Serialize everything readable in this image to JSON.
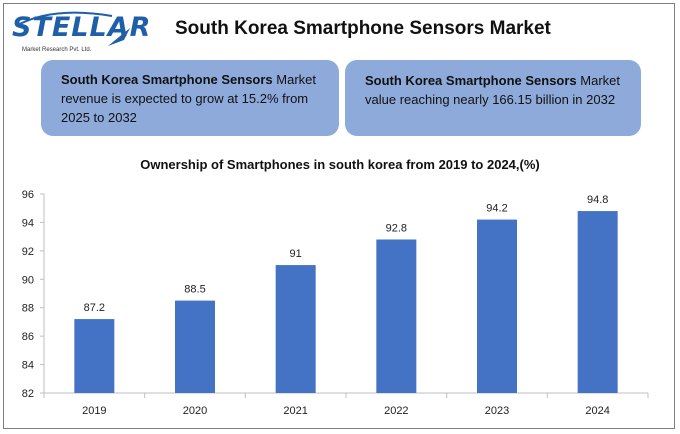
{
  "logo": {
    "brand": "STELLAR",
    "tagline": "Market Research Pvt. Ltd."
  },
  "header": {
    "title": "South Korea Smartphone Sensors Market"
  },
  "info_boxes": [
    {
      "bold": "South Korea Smartphone Sensors",
      "text": " Market revenue is expected to grow at 15.2% from 2025 to 2032"
    },
    {
      "bold": "South Korea Smartphone Sensors",
      "text": " Market value reaching nearly 166.15 billion in 2032"
    }
  ],
  "colors": {
    "bar": "#4472c4",
    "box": "#8eaadb",
    "logo": "#1f5fa8"
  },
  "chart_data": {
    "type": "bar",
    "title": "Ownership of Smartphones in south korea from  2019 to  2024,(%)",
    "categories": [
      "2019",
      "2020",
      "2021",
      "2022",
      "2023",
      "2024"
    ],
    "values": [
      87.2,
      88.5,
      91,
      92.8,
      94.2,
      94.8
    ],
    "value_labels": [
      "87.2",
      "88.5",
      "91",
      "92.8",
      "94.2",
      "94.8"
    ],
    "ylim": [
      82,
      96
    ],
    "yticks": [
      82,
      84,
      86,
      88,
      90,
      92,
      94,
      96
    ],
    "xlabel": "",
    "ylabel": "",
    "grid": false,
    "legend": "none"
  }
}
